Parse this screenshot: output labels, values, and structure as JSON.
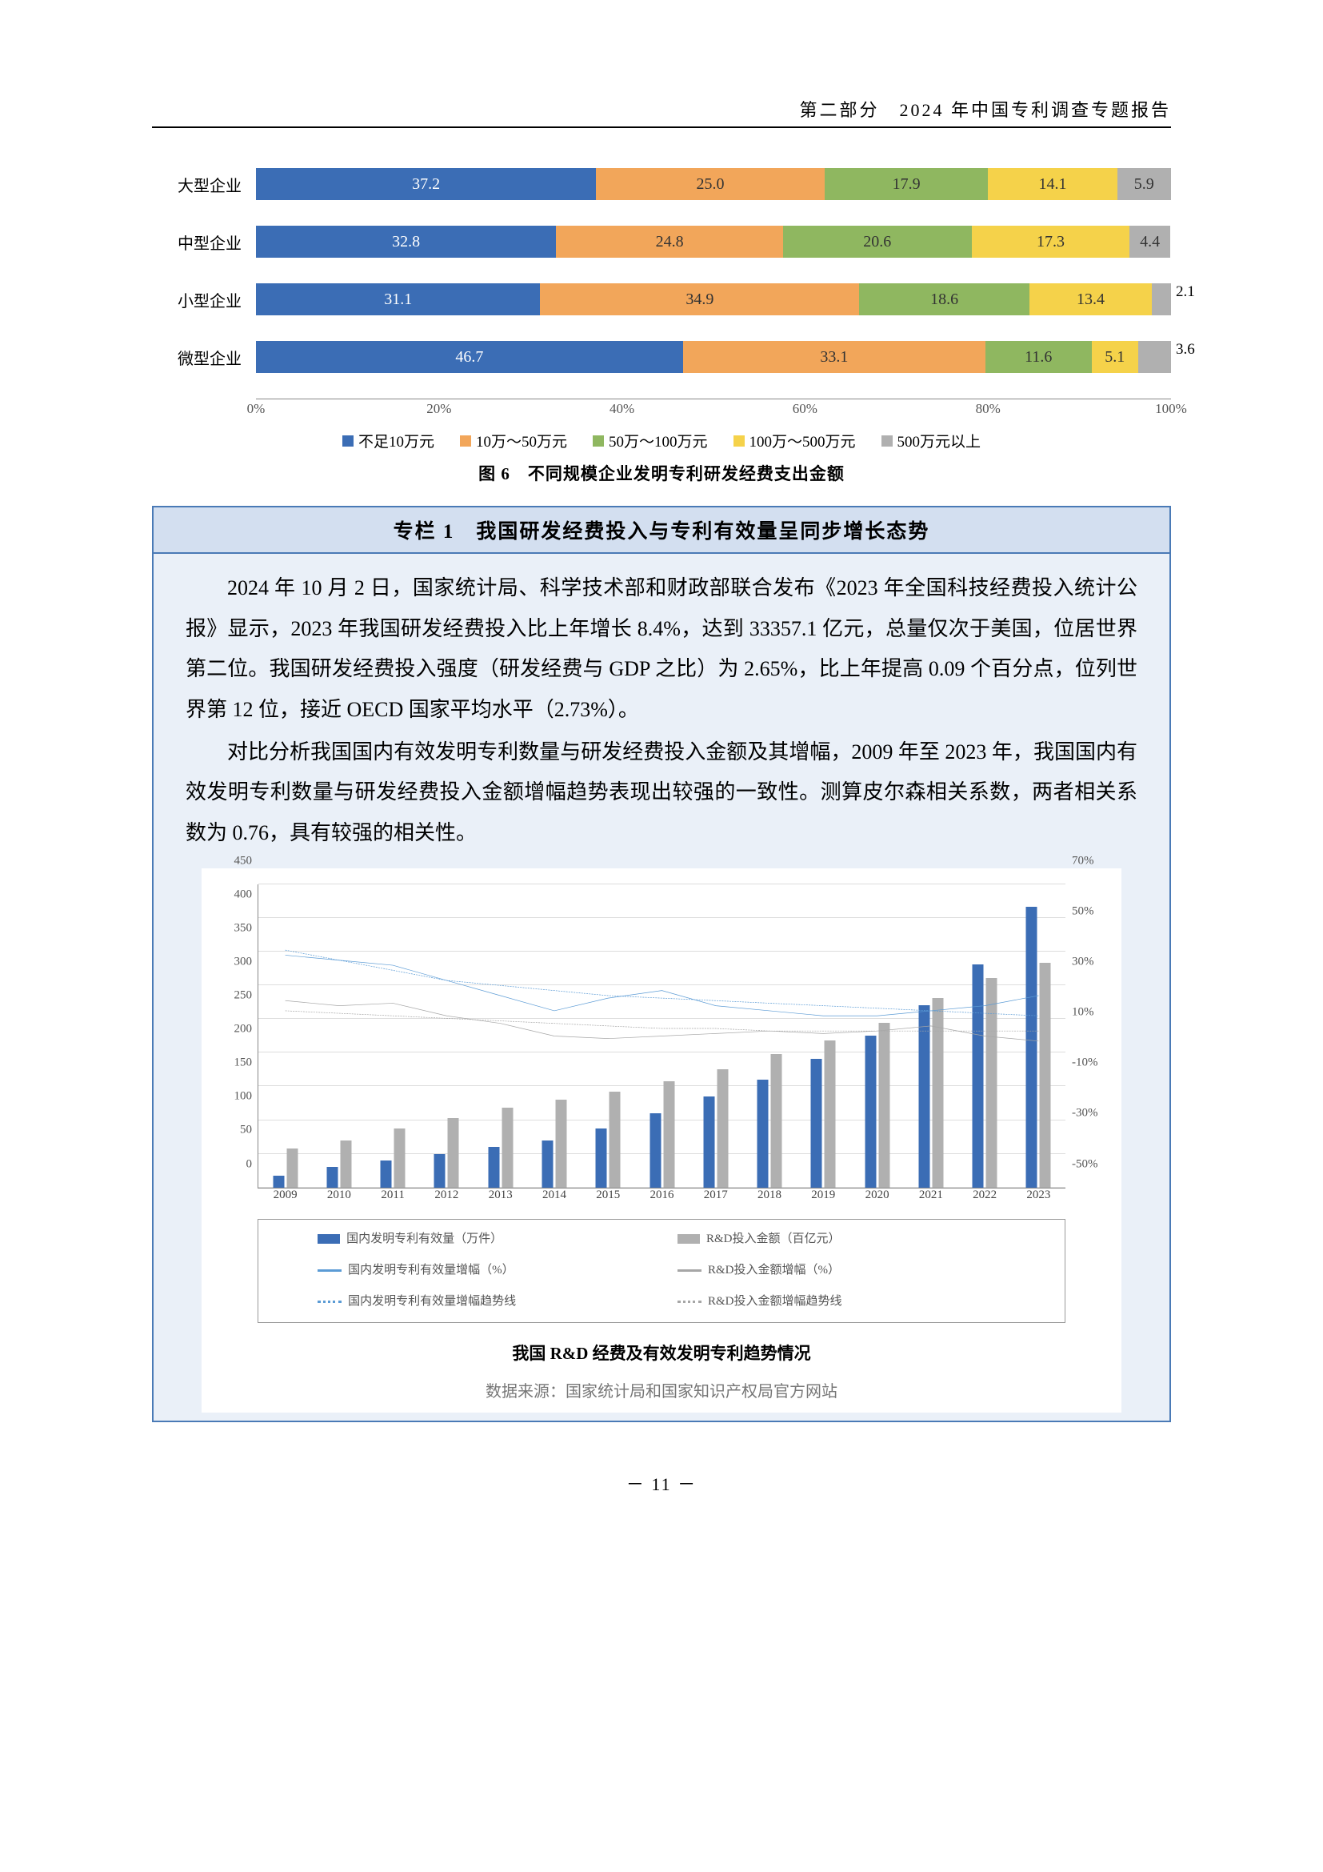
{
  "header": "第二部分　2024 年中国专利调查专题报告",
  "chart1": {
    "type": "stacked_bar_horizontal",
    "categories": [
      "大型企业",
      "中型企业",
      "小型企业",
      "微型企业"
    ],
    "series_labels": [
      "不足10万元",
      "10万～50万元",
      "50万～100万元",
      "100万～500万元",
      "500万元以上"
    ],
    "colors": [
      "#3b6db5",
      "#f2a65a",
      "#8fb760",
      "#f5d24a",
      "#b0b0b0"
    ],
    "text_colors": [
      "#ffffff",
      "#333333",
      "#333333",
      "#333333",
      "#333333"
    ],
    "data": [
      [
        37.2,
        25.0,
        17.9,
        14.1,
        5.9
      ],
      [
        32.8,
        24.8,
        20.6,
        17.3,
        4.4
      ],
      [
        31.1,
        34.9,
        18.6,
        13.4,
        2.1
      ],
      [
        46.7,
        33.1,
        11.6,
        5.1,
        3.6
      ]
    ],
    "xticks": [
      "0%",
      "20%",
      "40%",
      "60%",
      "80%",
      "100%"
    ],
    "caption": "图 6　不同规模企业发明专利研发经费支出金额"
  },
  "colbox": {
    "title": "专栏 1　我国研发经费投入与专利有效量呈同步增长态势",
    "p1": "2024 年 10 月 2 日，国家统计局、科学技术部和财政部联合发布《2023 年全国科技经费投入统计公报》显示，2023 年我国研发经费投入比上年增长 8.4%，达到 33357.1 亿元，总量仅次于美国，位居世界第二位。我国研发经费投入强度（研发经费与 GDP 之比）为 2.65%，比上年提高 0.09 个百分点，位列世界第 12 位，接近 OECD 国家平均水平（2.73%）。",
    "p2": "对比分析我国国内有效发明专利数量与研发经费投入金额及其增幅，2009 年至 2023 年，我国国内有效发明专利数量与研发经费投入金额增幅趋势表现出较强的一致性。测算皮尔森相关系数，两者相关系数为 0.76，具有较强的相关性。"
  },
  "chart2": {
    "type": "combo_bar_line",
    "years": [
      2009,
      2010,
      2011,
      2012,
      2013,
      2014,
      2015,
      2016,
      2017,
      2018,
      2019,
      2020,
      2021,
      2022,
      2023
    ],
    "bar1_values": [
      18,
      30,
      40,
      50,
      60,
      70,
      88,
      110,
      135,
      160,
      190,
      225,
      270,
      330,
      415
    ],
    "bar2_values": [
      58,
      70,
      87,
      103,
      118,
      130,
      142,
      157,
      175,
      197,
      218,
      244,
      280,
      310,
      333
    ],
    "bar1_color": "#3b6db5",
    "bar2_color": "#b0b0b0",
    "line1_color": "#5b9bd5",
    "line2_color": "#a6a6a6",
    "line1_dash_color": "#5b9bd5",
    "line2_dash_color": "#a6a6a6",
    "line1_pct": [
      42,
      40,
      38,
      32,
      26,
      20,
      25,
      28,
      22,
      20,
      18,
      18,
      20,
      22,
      26
    ],
    "line2_pct": [
      24,
      22,
      23,
      18,
      15,
      10,
      9,
      10,
      11,
      12,
      11,
      12,
      14,
      10,
      8
    ],
    "trend1_pct": [
      44,
      40,
      36,
      32,
      30,
      28,
      26,
      25,
      24,
      23,
      22,
      21,
      20,
      19,
      18
    ],
    "trend2_pct": [
      20,
      19,
      18,
      17,
      16,
      15,
      14,
      13,
      13,
      12,
      12,
      12,
      12,
      12,
      12
    ],
    "ylim_left": [
      0,
      450
    ],
    "ytick_left_step": 50,
    "ylim_right": [
      -50,
      70
    ],
    "ytick_right_step": 20,
    "legend": [
      {
        "label": "国内发明专利有效量（万件）",
        "type": "box",
        "color": "#3b6db5"
      },
      {
        "label": "R&D投入金额（百亿元）",
        "type": "box",
        "color": "#b0b0b0"
      },
      {
        "label": "国内发明专利有效量增幅（%）",
        "type": "line",
        "color": "#5b9bd5"
      },
      {
        "label": "R&D投入金额增幅（%）",
        "type": "line",
        "color": "#a6a6a6"
      },
      {
        "label": "国内发明专利有效量增幅趋势线",
        "type": "dash",
        "color": "#5b9bd5"
      },
      {
        "label": "R&D投入金额增幅趋势线",
        "type": "dash",
        "color": "#a6a6a6"
      }
    ],
    "title": "我国 R&D 经费及有效发明专利趋势情况",
    "source": "数据来源：国家统计局和国家知识产权局官方网站"
  },
  "pagenum": "－ 11 －"
}
